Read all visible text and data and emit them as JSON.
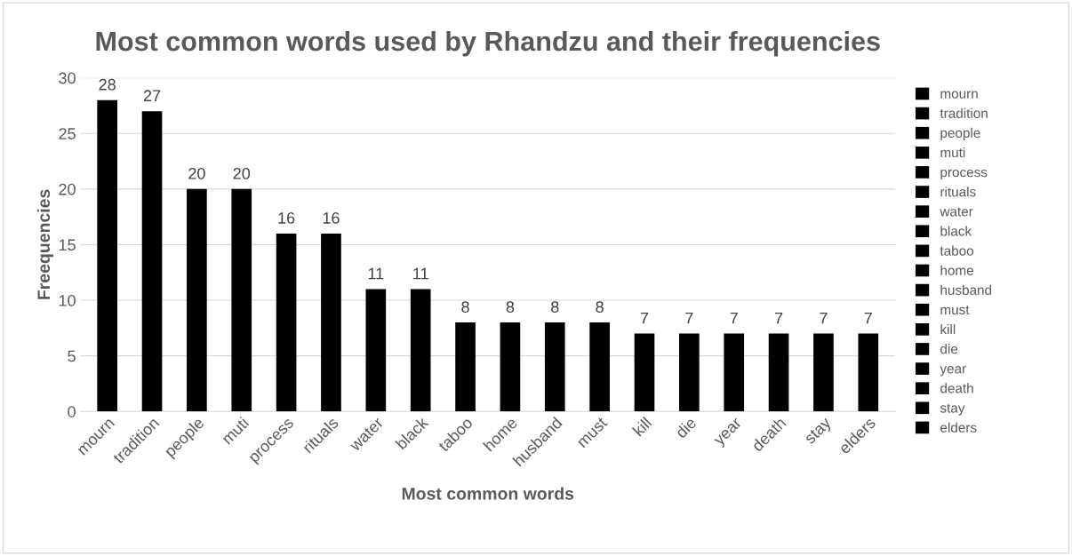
{
  "chart_data": {
    "type": "bar",
    "title": "Most common words used by Rhandzu and their frequencies",
    "xlabel": "Most common words",
    "ylabel": "Freequencies",
    "categories": [
      "mourn",
      "tradition",
      "people",
      "muti",
      "process",
      "rituals",
      "water",
      "black",
      "taboo",
      "home",
      "husband",
      "must",
      "kill",
      "die",
      "year",
      "death",
      "stay",
      "elders"
    ],
    "series": [
      {
        "name": "mourn",
        "color": "#000000",
        "values": [
          28,
          null,
          null,
          null,
          null,
          null,
          null,
          null,
          null,
          null,
          null,
          null,
          null,
          null,
          null,
          null,
          null,
          null
        ]
      },
      {
        "name": "tradition",
        "color": "#000000",
        "values": [
          null,
          27,
          null,
          null,
          null,
          null,
          null,
          null,
          null,
          null,
          null,
          null,
          null,
          null,
          null,
          null,
          null,
          null
        ]
      },
      {
        "name": "people",
        "color": "#000000",
        "values": [
          null,
          null,
          20,
          null,
          null,
          null,
          null,
          null,
          null,
          null,
          null,
          null,
          null,
          null,
          null,
          null,
          null,
          null
        ]
      },
      {
        "name": "muti",
        "color": "#000000",
        "values": [
          null,
          null,
          null,
          20,
          null,
          null,
          null,
          null,
          null,
          null,
          null,
          null,
          null,
          null,
          null,
          null,
          null,
          null
        ]
      },
      {
        "name": "process",
        "color": "#000000",
        "values": [
          null,
          null,
          null,
          null,
          16,
          null,
          null,
          null,
          null,
          null,
          null,
          null,
          null,
          null,
          null,
          null,
          null,
          null
        ]
      },
      {
        "name": "rituals",
        "color": "#000000",
        "values": [
          null,
          null,
          null,
          null,
          null,
          16,
          null,
          null,
          null,
          null,
          null,
          null,
          null,
          null,
          null,
          null,
          null,
          null
        ]
      },
      {
        "name": "water",
        "color": "#000000",
        "values": [
          null,
          null,
          null,
          null,
          null,
          null,
          11,
          null,
          null,
          null,
          null,
          null,
          null,
          null,
          null,
          null,
          null,
          null
        ]
      },
      {
        "name": "black",
        "color": "#000000",
        "values": [
          null,
          null,
          null,
          null,
          null,
          null,
          null,
          11,
          null,
          null,
          null,
          null,
          null,
          null,
          null,
          null,
          null,
          null
        ]
      },
      {
        "name": "taboo",
        "color": "#000000",
        "values": [
          null,
          null,
          null,
          null,
          null,
          null,
          null,
          null,
          8,
          null,
          null,
          null,
          null,
          null,
          null,
          null,
          null,
          null
        ]
      },
      {
        "name": "home",
        "color": "#000000",
        "values": [
          null,
          null,
          null,
          null,
          null,
          null,
          null,
          null,
          null,
          8,
          null,
          null,
          null,
          null,
          null,
          null,
          null,
          null
        ]
      },
      {
        "name": "husband",
        "color": "#000000",
        "values": [
          null,
          null,
          null,
          null,
          null,
          null,
          null,
          null,
          null,
          null,
          8,
          null,
          null,
          null,
          null,
          null,
          null,
          null
        ]
      },
      {
        "name": "must",
        "color": "#000000",
        "values": [
          null,
          null,
          null,
          null,
          null,
          null,
          null,
          null,
          null,
          null,
          null,
          8,
          null,
          null,
          null,
          null,
          null,
          null
        ]
      },
      {
        "name": "kill",
        "color": "#000000",
        "values": [
          null,
          null,
          null,
          null,
          null,
          null,
          null,
          null,
          null,
          null,
          null,
          null,
          7,
          null,
          null,
          null,
          null,
          null
        ]
      },
      {
        "name": "die",
        "color": "#000000",
        "values": [
          null,
          null,
          null,
          null,
          null,
          null,
          null,
          null,
          null,
          null,
          null,
          null,
          null,
          7,
          null,
          null,
          null,
          null
        ]
      },
      {
        "name": "year",
        "color": "#000000",
        "values": [
          null,
          null,
          null,
          null,
          null,
          null,
          null,
          null,
          null,
          null,
          null,
          null,
          null,
          null,
          7,
          null,
          null,
          null
        ]
      },
      {
        "name": "death",
        "color": "#000000",
        "values": [
          null,
          null,
          null,
          null,
          null,
          null,
          null,
          null,
          null,
          null,
          null,
          null,
          null,
          null,
          null,
          7,
          null,
          null
        ]
      },
      {
        "name": "stay",
        "color": "#000000",
        "values": [
          null,
          null,
          null,
          null,
          null,
          null,
          null,
          null,
          null,
          null,
          null,
          null,
          null,
          null,
          null,
          null,
          7,
          null
        ]
      },
      {
        "name": "elders",
        "color": "#000000",
        "values": [
          null,
          null,
          null,
          null,
          null,
          null,
          null,
          null,
          null,
          null,
          null,
          null,
          null,
          null,
          null,
          null,
          null,
          7
        ]
      }
    ],
    "ylim": [
      0,
      30
    ],
    "yticks": [
      0,
      5,
      10,
      15,
      20,
      25,
      30
    ],
    "grid": "y",
    "data_labels": true,
    "legend": "right"
  }
}
